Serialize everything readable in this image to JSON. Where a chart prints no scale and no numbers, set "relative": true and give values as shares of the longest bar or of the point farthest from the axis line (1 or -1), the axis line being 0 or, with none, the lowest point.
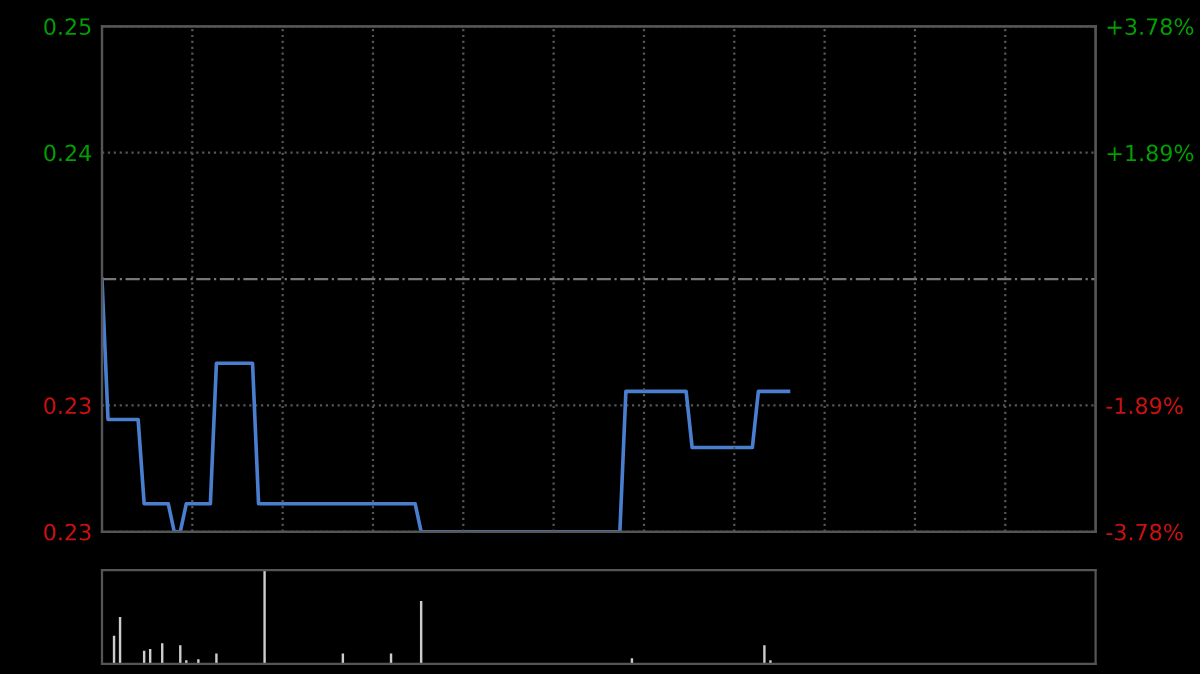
{
  "chart_data": [
    {
      "type": "line",
      "categories": [
        null,
        null,
        null,
        null,
        null,
        null,
        null,
        null,
        null,
        null,
        null,
        null,
        null,
        null,
        null,
        null,
        null,
        null,
        null,
        null,
        null,
        null,
        null,
        null,
        null,
        null,
        null,
        null,
        null,
        null,
        null,
        null,
        null,
        null,
        null,
        null,
        null,
        null,
        null,
        null,
        null,
        null,
        null,
        null,
        null,
        null,
        null,
        null,
        null,
        null,
        null,
        null,
        null,
        null,
        null,
        null,
        null,
        null,
        null,
        null,
        null,
        null,
        null,
        null,
        null,
        null,
        null,
        null,
        null,
        null,
        null,
        null,
        null,
        null,
        null,
        null,
        null,
        null,
        null,
        null,
        null,
        null,
        null,
        null,
        null,
        null,
        null,
        null,
        null,
        null,
        null,
        null,
        null,
        null,
        null,
        null,
        null,
        null,
        null,
        null,
        null,
        null,
        null,
        null,
        null,
        null,
        null,
        null,
        null,
        null,
        null,
        null,
        null,
        null,
        null,
        null,
        null,
        null,
        null,
        null,
        null,
        null,
        null,
        null,
        null,
        null,
        null,
        null,
        null,
        null,
        null,
        null,
        null,
        null,
        null,
        null,
        null,
        null,
        null,
        null,
        null,
        null,
        null,
        null,
        null,
        null,
        null,
        null,
        null,
        null,
        null,
        null,
        null,
        null,
        null,
        null,
        null,
        null,
        null,
        null,
        null,
        null,
        null,
        null,
        null,
        null
      ],
      "series": [
        {
          "color": "#4a7fd0",
          "values": [
            0.238,
            0.233,
            0.233,
            0.233,
            0.233,
            0.233,
            0.233,
            0.23,
            0.23,
            0.23,
            0.23,
            0.23,
            0.229,
            0.229,
            0.23,
            0.23,
            0.23,
            0.23,
            0.23,
            0.235,
            0.235,
            0.235,
            0.235,
            0.235,
            0.235,
            0.235,
            0.23,
            0.23,
            0.23,
            0.23,
            0.23,
            0.23,
            0.23,
            0.23,
            0.23,
            0.23,
            0.23,
            0.23,
            0.23,
            0.23,
            0.23,
            0.23,
            0.23,
            0.23,
            0.23,
            0.23,
            0.23,
            0.23,
            0.23,
            0.23,
            0.23,
            0.23,
            0.23,
            0.229,
            0.229,
            0.229,
            0.229,
            0.229,
            0.229,
            0.229,
            0.229,
            0.229,
            0.229,
            0.229,
            0.229,
            0.229,
            0.229,
            0.229,
            0.229,
            0.229,
            0.229,
            0.229,
            0.229,
            0.229,
            0.229,
            0.229,
            0.229,
            0.229,
            0.229,
            0.229,
            0.229,
            0.229,
            0.229,
            0.229,
            0.229,
            0.229,
            0.229,
            0.234,
            0.234,
            0.234,
            0.234,
            0.234,
            0.234,
            0.234,
            0.234,
            0.234,
            0.234,
            0.234,
            0.232,
            0.232,
            0.232,
            0.232,
            0.232,
            0.232,
            0.232,
            0.232,
            0.232,
            0.232,
            0.232,
            0.234,
            0.234,
            0.234,
            0.234,
            0.234,
            0.234,
            null,
            null,
            null,
            null,
            null,
            null,
            null,
            null,
            null,
            null,
            null,
            null,
            null,
            null,
            null,
            null,
            null,
            null,
            null,
            null,
            null,
            null,
            null,
            null,
            null,
            null,
            null,
            null,
            null,
            null,
            null,
            null,
            null,
            null,
            null,
            null,
            null,
            null,
            null,
            null,
            null,
            null,
            null,
            null,
            null,
            null,
            null,
            null,
            null,
            null,
            null
          ]
        }
      ],
      "ylim": [
        0.229,
        0.247
      ],
      "yticks": [
        {
          "value": 0.229,
          "label": "0.23"
        },
        {
          "value": 0.2335,
          "label": "0.23"
        },
        {
          "value": 0.2425,
          "label": "0.24"
        },
        {
          "value": 0.247,
          "label": "0.25"
        }
      ],
      "y2lim": [
        -3.78,
        3.78
      ],
      "y2ticks": [
        {
          "value": -3.78,
          "label": "-3.78%"
        },
        {
          "value": -1.89,
          "label": "-1.89%"
        },
        {
          "value": 1.89,
          "label": "+1.89%"
        },
        {
          "value": 3.78,
          "label": "+3.78%"
        }
      ],
      "ref_lines": [
        {
          "axis": "y",
          "value": 0.238,
          "line_style": "dashdot"
        }
      ],
      "grid": true
    },
    {
      "type": "bar",
      "relative": true,
      "categories": [
        null,
        null,
        null,
        null,
        null,
        null,
        null,
        null,
        null,
        null,
        null,
        null,
        null,
        null,
        null,
        null,
        null,
        null,
        null,
        null,
        null,
        null,
        null,
        null,
        null,
        null,
        null,
        null,
        null,
        null,
        null,
        null,
        null,
        null,
        null,
        null,
        null,
        null,
        null,
        null,
        null,
        null,
        null,
        null,
        null,
        null,
        null,
        null,
        null,
        null,
        null,
        null,
        null,
        null,
        null,
        null,
        null,
        null,
        null,
        null,
        null,
        null,
        null,
        null,
        null,
        null,
        null,
        null,
        null,
        null,
        null,
        null,
        null,
        null,
        null,
        null,
        null,
        null,
        null,
        null,
        null,
        null,
        null,
        null,
        null,
        null,
        null,
        null,
        null,
        null,
        null,
        null,
        null,
        null,
        null,
        null,
        null,
        null,
        null,
        null,
        null,
        null,
        null,
        null,
        null,
        null,
        null,
        null,
        null,
        null,
        null,
        null,
        null,
        null,
        null,
        null,
        null,
        null,
        null,
        null,
        null,
        null,
        null,
        null,
        null,
        null,
        null,
        null,
        null,
        null,
        null,
        null,
        null,
        null,
        null,
        null,
        null,
        null,
        null,
        null,
        null,
        null,
        null,
        null,
        null,
        null,
        null,
        null,
        null,
        null,
        null,
        null,
        null,
        null,
        null,
        null,
        null,
        null,
        null,
        null,
        null,
        null,
        null,
        null,
        null,
        null
      ],
      "values": [
        null,
        null,
        0.3,
        0.5,
        null,
        null,
        null,
        0.14,
        0.16,
        null,
        0.22,
        null,
        null,
        0.2,
        0.04,
        null,
        0.05,
        null,
        null,
        0.11,
        null,
        null,
        null,
        null,
        null,
        null,
        null,
        1.0,
        null,
        null,
        null,
        null,
        null,
        null,
        null,
        null,
        null,
        null,
        null,
        null,
        0.11,
        null,
        null,
        null,
        null,
        null,
        null,
        null,
        0.11,
        null,
        null,
        null,
        null,
        0.67,
        null,
        null,
        null,
        null,
        null,
        null,
        null,
        null,
        null,
        null,
        null,
        null,
        null,
        null,
        null,
        null,
        null,
        null,
        null,
        null,
        null,
        null,
        null,
        null,
        null,
        null,
        null,
        null,
        null,
        null,
        null,
        null,
        null,
        null,
        0.06,
        null,
        null,
        null,
        null,
        null,
        null,
        null,
        null,
        null,
        null,
        null,
        null,
        null,
        null,
        null,
        null,
        null,
        null,
        null,
        null,
        null,
        0.2,
        0.04,
        null,
        null,
        null,
        null,
        null,
        null,
        null,
        null,
        null,
        null,
        null,
        null,
        null,
        null,
        null,
        null,
        null,
        null,
        null,
        null,
        null,
        null,
        null,
        null,
        null,
        null,
        null,
        null,
        null,
        null,
        null,
        null,
        null,
        null,
        null,
        null,
        null,
        null,
        null,
        null,
        null,
        null,
        null,
        null,
        null,
        null,
        null,
        null,
        null,
        null,
        null,
        null,
        null,
        null
      ],
      "color": "#cccccc"
    }
  ]
}
